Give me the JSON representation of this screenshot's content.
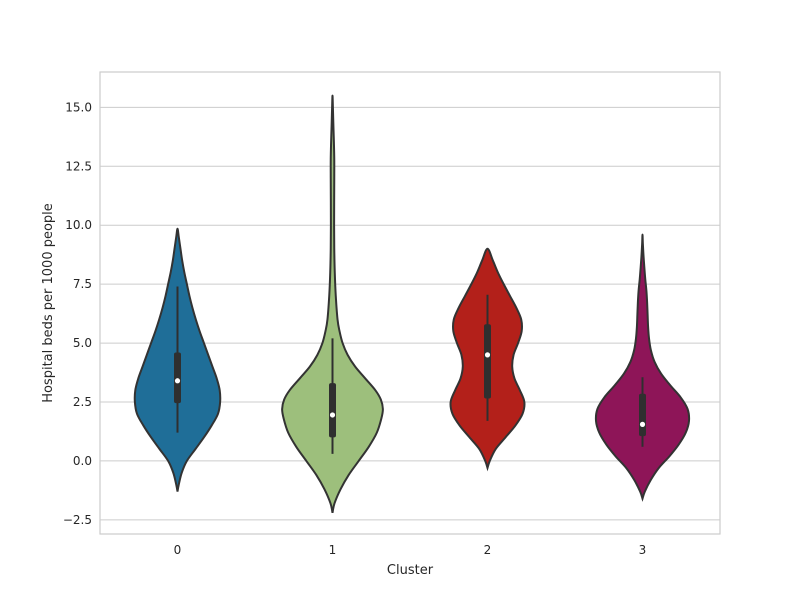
{
  "chart_data": {
    "type": "violin",
    "title": "",
    "xlabel": "Cluster",
    "ylabel": "Hospital beds per 1000 people",
    "categories": [
      "0",
      "1",
      "2",
      "3"
    ],
    "ylim": [
      -3.1,
      16.5
    ],
    "yticks": [
      -2.5,
      0.0,
      2.5,
      5.0,
      7.5,
      10.0,
      12.5,
      15.0
    ],
    "ytick_labels": [
      "−2.5",
      "0.0",
      "2.5",
      "5.0",
      "7.5",
      "10.0",
      "12.5",
      "15.0"
    ],
    "grid": true,
    "violins": [
      {
        "category": "0",
        "color": "#1f6e98",
        "density": [
          [
            -1.3,
            0.0
          ],
          [
            -1.0,
            0.03
          ],
          [
            -0.5,
            0.1
          ],
          [
            0.0,
            0.22
          ],
          [
            0.5,
            0.42
          ],
          [
            1.0,
            0.62
          ],
          [
            1.5,
            0.8
          ],
          [
            2.0,
            0.95
          ],
          [
            2.5,
            1.0
          ],
          [
            3.0,
            0.99
          ],
          [
            3.5,
            0.92
          ],
          [
            4.0,
            0.82
          ],
          [
            4.5,
            0.72
          ],
          [
            5.0,
            0.62
          ],
          [
            5.5,
            0.52
          ],
          [
            6.0,
            0.43
          ],
          [
            6.5,
            0.35
          ],
          [
            7.0,
            0.28
          ],
          [
            7.5,
            0.22
          ],
          [
            8.0,
            0.16
          ],
          [
            8.5,
            0.11
          ],
          [
            9.0,
            0.07
          ],
          [
            9.5,
            0.03
          ],
          [
            9.85,
            0.0
          ]
        ],
        "max_width": 0.55,
        "whisker": [
          1.2,
          7.4
        ],
        "q1": 2.45,
        "q3": 4.6,
        "median": 3.4
      },
      {
        "category": "1",
        "color": "#9dbf7c",
        "density": [
          [
            -2.2,
            0.0
          ],
          [
            -1.8,
            0.04
          ],
          [
            -1.2,
            0.16
          ],
          [
            -0.6,
            0.32
          ],
          [
            0.0,
            0.52
          ],
          [
            0.6,
            0.72
          ],
          [
            1.2,
            0.88
          ],
          [
            1.8,
            0.97
          ],
          [
            2.2,
            1.0
          ],
          [
            2.6,
            0.96
          ],
          [
            3.0,
            0.85
          ],
          [
            3.5,
            0.65
          ],
          [
            4.0,
            0.45
          ],
          [
            4.5,
            0.3
          ],
          [
            5.0,
            0.2
          ],
          [
            5.5,
            0.14
          ],
          [
            6.0,
            0.1
          ],
          [
            7.0,
            0.065
          ],
          [
            8.0,
            0.045
          ],
          [
            9.0,
            0.035
          ],
          [
            10.0,
            0.032
          ],
          [
            11.0,
            0.033
          ],
          [
            12.0,
            0.035
          ],
          [
            12.8,
            0.035
          ],
          [
            13.5,
            0.028
          ],
          [
            14.2,
            0.018
          ],
          [
            15.0,
            0.008
          ],
          [
            15.5,
            0.0
          ]
        ],
        "max_width": 0.65,
        "whisker": [
          0.3,
          5.2
        ],
        "q1": 1.0,
        "q3": 3.3,
        "median": 1.95
      },
      {
        "category": "2",
        "color": "#b3201a",
        "density": [
          [
            -0.3,
            0.0
          ],
          [
            0.0,
            0.05
          ],
          [
            0.5,
            0.18
          ],
          [
            1.0,
            0.4
          ],
          [
            1.5,
            0.62
          ],
          [
            2.0,
            0.78
          ],
          [
            2.5,
            0.82
          ],
          [
            3.0,
            0.72
          ],
          [
            3.5,
            0.6
          ],
          [
            4.0,
            0.55
          ],
          [
            4.5,
            0.58
          ],
          [
            5.0,
            0.68
          ],
          [
            5.5,
            0.76
          ],
          [
            6.0,
            0.75
          ],
          [
            6.5,
            0.64
          ],
          [
            7.0,
            0.5
          ],
          [
            7.5,
            0.36
          ],
          [
            8.0,
            0.23
          ],
          [
            8.5,
            0.12
          ],
          [
            9.0,
            0.0
          ]
        ],
        "max_width": 0.58,
        "whisker": [
          1.7,
          7.05
        ],
        "q1": 2.65,
        "q3": 5.8,
        "median": 4.5
      },
      {
        "category": "3",
        "color": "#8e1558",
        "density": [
          [
            -1.6,
            0.0
          ],
          [
            -1.3,
            0.05
          ],
          [
            -0.8,
            0.18
          ],
          [
            -0.3,
            0.35
          ],
          [
            0.2,
            0.58
          ],
          [
            0.7,
            0.78
          ],
          [
            1.2,
            0.93
          ],
          [
            1.7,
            1.0
          ],
          [
            2.2,
            0.97
          ],
          [
            2.7,
            0.82
          ],
          [
            3.2,
            0.6
          ],
          [
            3.7,
            0.4
          ],
          [
            4.2,
            0.26
          ],
          [
            4.7,
            0.18
          ],
          [
            5.2,
            0.14
          ],
          [
            5.7,
            0.12
          ],
          [
            6.2,
            0.11
          ],
          [
            6.7,
            0.1
          ],
          [
            7.2,
            0.085
          ],
          [
            7.7,
            0.06
          ],
          [
            8.2,
            0.04
          ],
          [
            8.7,
            0.022
          ],
          [
            9.2,
            0.008
          ],
          [
            9.6,
            0.0
          ]
        ],
        "max_width": 0.6,
        "whisker": [
          0.6,
          3.55
        ],
        "q1": 1.05,
        "q3": 2.85,
        "median": 1.55
      }
    ]
  }
}
